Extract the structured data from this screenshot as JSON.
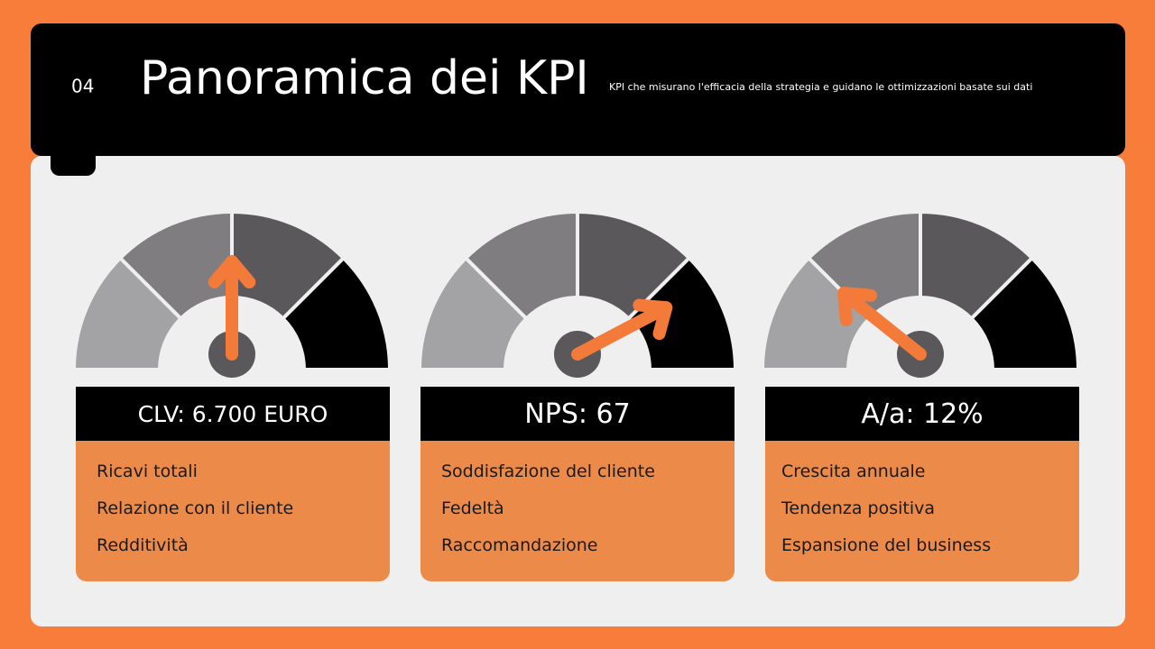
{
  "header": {
    "number": "04",
    "title": "Panoramica dei KPI",
    "subtitle": "KPI che misurano l'efficacia della strategia e guidano le ottimizzazioni basate sui dati"
  },
  "cards": [
    {
      "metric": "CLV: 6.700 EURO",
      "items": [
        "Ricavi totali",
        "Relazione con il cliente",
        "Redditività"
      ]
    },
    {
      "metric": "NPS: 67",
      "items": [
        "Soddisfazione del cliente",
        "Fedeltà",
        "Raccomandazione"
      ]
    },
    {
      "metric": "A/a: 12%",
      "items": [
        "Crescita annuale",
        "Tendenza positiva",
        "Espansione del business"
      ]
    }
  ]
}
